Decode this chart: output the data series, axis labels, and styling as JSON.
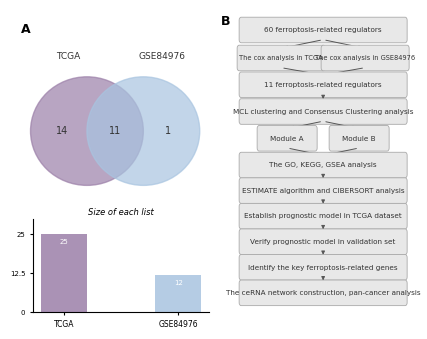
{
  "panel_A_label": "A",
  "panel_B_label": "B",
  "venn_tcga_label": "TCGA",
  "venn_gse_label": "GSE84976",
  "venn_tcga_only": 14,
  "venn_intersection": 11,
  "venn_gse_only": 1,
  "venn_tcga_color": "#9b7fa8",
  "venn_gse_color": "#a8c4e0",
  "bar_title": "Size of each list",
  "bar_categories": [
    "TCGA",
    "GSE84976"
  ],
  "bar_values": [
    25,
    12
  ],
  "bar_colors": [
    "#9b7fa8",
    "#a8c4e0"
  ],
  "bar_value_labels": [
    "25",
    "12"
  ],
  "bar_ylim": [
    0,
    30
  ],
  "bar_yticks": [
    0,
    12.5,
    25
  ],
  "flowchart_boxes": [
    "60 ferroptosis-related regulators",
    "The cox analysis in TCGA",
    "The cox analysis in GSE84976",
    "11 ferroptosis-related regulators",
    "MCL clustering and Consensus Clustering analysis",
    "Module A",
    "Module B",
    "The GO, KEGG, GSEA analysis",
    "ESTIMATE algorithm and CIBERSORT analysis",
    "Establish prognostic model in TCGA dataset",
    "Verify prognostic model in validation set",
    "Identify the key ferroptosis-related genes",
    "The ceRNA network construction, pan-cancer analysis"
  ],
  "box_bg_color": "#e8e8e8",
  "box_border_color": "#aaaaaa",
  "arrow_color": "#555555",
  "background_color": "#ffffff"
}
